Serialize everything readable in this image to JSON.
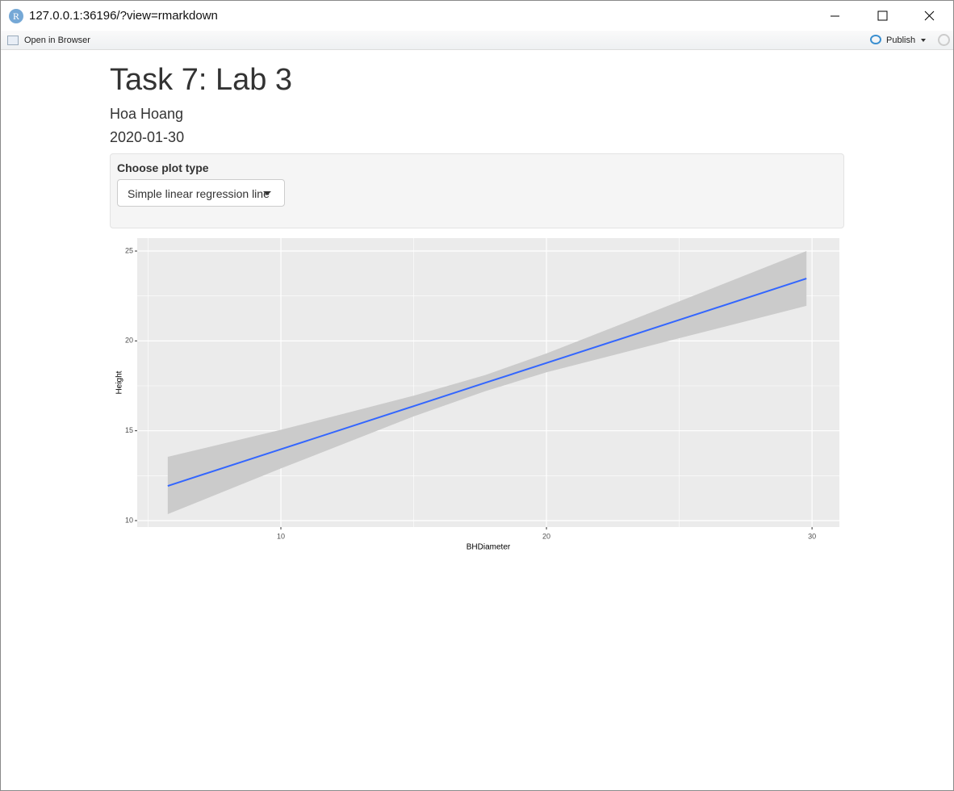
{
  "window": {
    "url": "127.0.0.1:36196/?view=rmarkdown",
    "icon": "R"
  },
  "toolbar": {
    "open": "Open in Browser",
    "publish": "Publish"
  },
  "document": {
    "title": "Task 7: Lab 3",
    "author": "Hoa Hoang",
    "date": "2020-01-30",
    "input_label": "Choose plot type",
    "input_value": "Simple linear regression line"
  },
  "chart_data": {
    "type": "smooth",
    "x_label": "BHDiameter",
    "y_label": "Height",
    "x": [
      5.74,
      10,
      15,
      17.7,
      20,
      25,
      29.79
    ],
    "line": {
      "color": "#3366FF",
      "values": [
        11.93,
        13.97,
        16.37,
        17.67,
        18.77,
        21.17,
        23.47
      ]
    },
    "band": {
      "color": "#CBCBCB",
      "lower": [
        10.36,
        12.9,
        15.8,
        17.2,
        18.25,
        20.15,
        21.95
      ],
      "upper": [
        13.55,
        15.05,
        16.95,
        18.1,
        19.3,
        22.2,
        25.0
      ]
    },
    "xlim": [
      4.59,
      31.03
    ],
    "ylim": [
      9.64,
      25.72
    ],
    "xticks": [
      10,
      20,
      30
    ],
    "yticks": [
      10,
      15,
      20,
      25
    ],
    "grid": true,
    "minor_grid": true,
    "panel_color": "#EBEBEB"
  }
}
